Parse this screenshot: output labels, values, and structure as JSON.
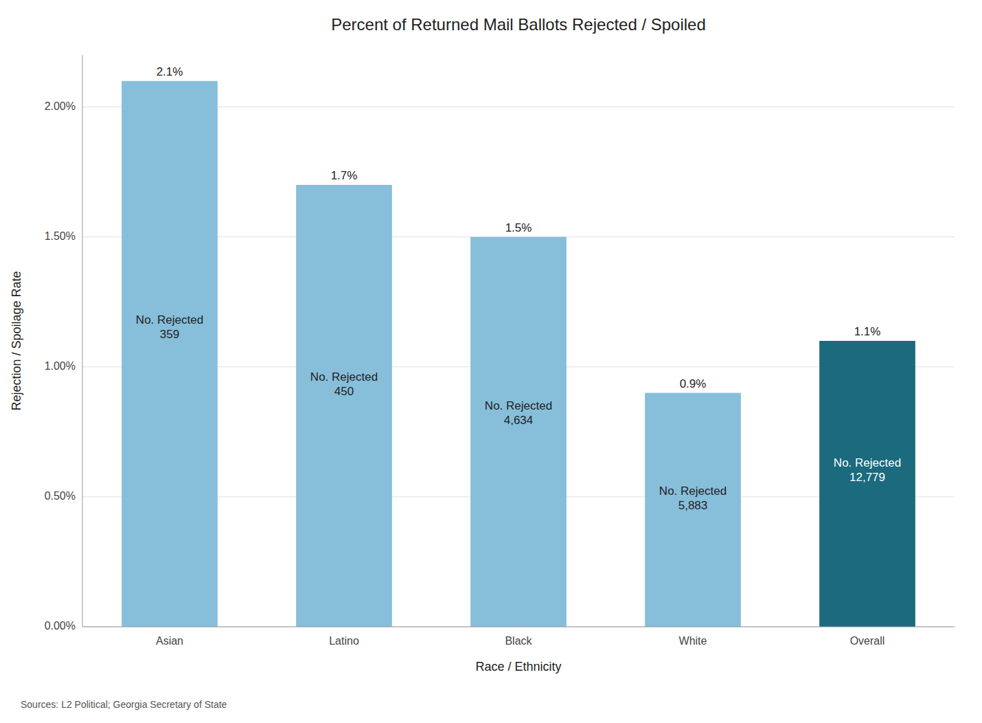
{
  "chart_data": {
    "type": "bar",
    "title": "Percent of Returned Mail Ballots Rejected / Spoiled",
    "categories": [
      "Asian",
      "Latino",
      "Black",
      "White",
      "Overall"
    ],
    "values": [
      0.021,
      0.017,
      0.015,
      0.009,
      0.011
    ],
    "value_labels": [
      "2.1%",
      "1.7%",
      "1.5%",
      "0.9%",
      "1.1%"
    ],
    "data_labels": true,
    "annotations": [
      "No. Rejected\n359",
      "No. Rejected\n450",
      "No. Rejected\n4,634",
      "No. Rejected\n5,883",
      "No. Rejected\n12,779"
    ],
    "colors": [
      "#87BEDA",
      "#87BEDA",
      "#87BEDA",
      "#87BEDA",
      "#1B6A7E"
    ],
    "x_label": "Race / Ethnicity",
    "y_label": "Rejection / Spoilage Rate",
    "ylim": [
      0,
      0.022
    ],
    "yticks": [
      {
        "value": 0.0,
        "label": "0.00%"
      },
      {
        "value": 0.005,
        "label": "0.50%"
      },
      {
        "value": 0.01,
        "label": "1.00%"
      },
      {
        "value": 0.015,
        "label": "1.50%"
      },
      {
        "value": 0.02,
        "label": "2.00%"
      }
    ],
    "grid": true,
    "source": "Sources: L2 Political; Georgia Secretary of State"
  }
}
